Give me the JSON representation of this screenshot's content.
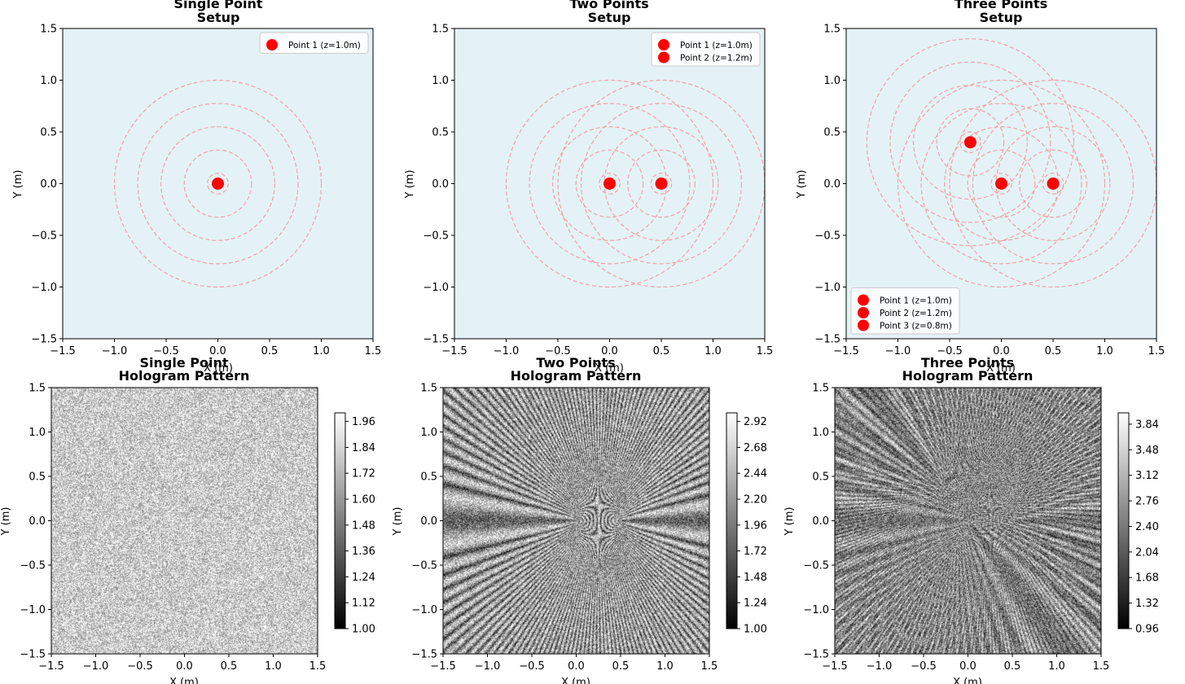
{
  "figure": {
    "panels": [
      {
        "title_line1": "Single Point",
        "title_line2": "Setup",
        "xlabel": "X (m)",
        "ylabel": "Y (m)"
      },
      {
        "title_line1": "Two Points",
        "title_line2": "Setup",
        "xlabel": "X (m)",
        "ylabel": "Y (m)"
      },
      {
        "title_line1": "Three Points",
        "title_line2": "Setup",
        "xlabel": "X (m)",
        "ylabel": "Y (m)"
      },
      {
        "title_line1": "Single Point",
        "title_line2": "Hologram Pattern",
        "xlabel": "X (m)",
        "ylabel": "Y (m)"
      },
      {
        "title_line1": "Two Points",
        "title_line2": "Hologram Pattern",
        "xlabel": "X (m)",
        "ylabel": "Y (m)"
      },
      {
        "title_line1": "Three Points",
        "title_line2": "Hologram Pattern",
        "xlabel": "X (m)",
        "ylabel": "Y (m)"
      }
    ]
  },
  "colors": {
    "setup_bg": "#e4f2f6",
    "point": "#ff0000",
    "ring": "#f2a0a8"
  },
  "chart_data": [
    {
      "type": "scatter",
      "title": "Single Point\nSetup",
      "xlabel": "X (m)",
      "ylabel": "Y (m)",
      "xlim": [
        -1.5,
        1.5
      ],
      "ylim": [
        -1.5,
        1.5
      ],
      "xticks": [
        "−1.5",
        "−1.0",
        "−0.5",
        "0.0",
        "0.5",
        "1.0",
        "1.5"
      ],
      "yticks": [
        "−1.5",
        "−1.0",
        "−0.5",
        "0.0",
        "0.5",
        "1.0",
        "1.5"
      ],
      "series": [
        {
          "name": "Point 1 (z=1.0m)",
          "x": [
            0.0
          ],
          "y": [
            0.0
          ],
          "z": 1.0
        }
      ],
      "ring_radii": [
        0.1,
        0.325,
        0.55,
        0.775,
        1.0
      ],
      "legend_position": "upper-right"
    },
    {
      "type": "scatter",
      "title": "Two Points\nSetup",
      "xlabel": "X (m)",
      "ylabel": "Y (m)",
      "xlim": [
        -1.5,
        1.5
      ],
      "ylim": [
        -1.5,
        1.5
      ],
      "xticks": [
        "−1.5",
        "−1.0",
        "−0.5",
        "0.0",
        "0.5",
        "1.0",
        "1.5"
      ],
      "yticks": [
        "−1.5",
        "−1.0",
        "−0.5",
        "0.0",
        "0.5",
        "1.0",
        "1.5"
      ],
      "series": [
        {
          "name": "Point 1 (z=1.0m)",
          "x": [
            0.0
          ],
          "y": [
            0.0
          ],
          "z": 1.0
        },
        {
          "name": "Point 2 (z=1.2m)",
          "x": [
            0.5
          ],
          "y": [
            0.0
          ],
          "z": 1.2
        }
      ],
      "ring_radii": [
        0.1,
        0.325,
        0.55,
        0.775,
        1.0
      ],
      "legend_position": "upper-right"
    },
    {
      "type": "scatter",
      "title": "Three Points\nSetup",
      "xlabel": "X (m)",
      "ylabel": "Y (m)",
      "xlim": [
        -1.5,
        1.5
      ],
      "ylim": [
        -1.5,
        1.5
      ],
      "xticks": [
        "−1.5",
        "−1.0",
        "−0.5",
        "0.0",
        "0.5",
        "1.0",
        "1.5"
      ],
      "yticks": [
        "−1.5",
        "−1.0",
        "−0.5",
        "0.0",
        "0.5",
        "1.0",
        "1.5"
      ],
      "series": [
        {
          "name": "Point 1 (z=1.0m)",
          "x": [
            0.0
          ],
          "y": [
            0.0
          ],
          "z": 1.0
        },
        {
          "name": "Point 2 (z=1.2m)",
          "x": [
            0.5
          ],
          "y": [
            0.0
          ],
          "z": 1.2
        },
        {
          "name": "Point 3 (z=0.8m)",
          "x": [
            -0.3
          ],
          "y": [
            0.4
          ],
          "z": 0.8
        }
      ],
      "ring_radii": [
        0.1,
        0.325,
        0.55,
        0.775,
        1.0
      ],
      "legend_position": "lower-left"
    },
    {
      "type": "heatmap",
      "title": "Single Point\nHologram Pattern",
      "xlabel": "X (m)",
      "ylabel": "Y (m)",
      "xlim": [
        -1.5,
        1.5
      ],
      "ylim": [
        -1.5,
        1.5
      ],
      "xticks": [
        "−1.5",
        "−1.0",
        "−0.5",
        "0.0",
        "0.5",
        "1.0",
        "1.5"
      ],
      "yticks": [
        "−1.5",
        "−1.0",
        "−0.5",
        "0.0",
        "0.5",
        "1.0",
        "1.5"
      ],
      "colormap": "gray",
      "value_range": [
        1.0,
        2.0
      ],
      "colorbar_ticks": [
        "1.00",
        "1.12",
        "1.24",
        "1.36",
        "1.48",
        "1.60",
        "1.72",
        "1.84",
        "1.96"
      ],
      "sources": [
        [
          0.0,
          0.0
        ]
      ]
    },
    {
      "type": "heatmap",
      "title": "Two Points\nHologram Pattern",
      "xlabel": "X (m)",
      "ylabel": "Y (m)",
      "xlim": [
        -1.5,
        1.5
      ],
      "ylim": [
        -1.5,
        1.5
      ],
      "xticks": [
        "−1.5",
        "−1.0",
        "−0.5",
        "0.0",
        "0.5",
        "1.0",
        "1.5"
      ],
      "yticks": [
        "−1.5",
        "−1.0",
        "−0.5",
        "0.0",
        "0.5",
        "1.0",
        "1.5"
      ],
      "colormap": "gray",
      "value_range": [
        1.0,
        3.0
      ],
      "colorbar_ticks": [
        "1.00",
        "1.24",
        "1.48",
        "1.72",
        "1.96",
        "2.20",
        "2.44",
        "2.68",
        "2.92"
      ],
      "sources": [
        [
          0.0,
          0.0
        ],
        [
          0.5,
          0.0
        ]
      ]
    },
    {
      "type": "heatmap",
      "title": "Three Points\nHologram Pattern",
      "xlabel": "X (m)",
      "ylabel": "Y (m)",
      "xlim": [
        -1.5,
        1.5
      ],
      "ylim": [
        -1.5,
        1.5
      ],
      "xticks": [
        "−1.5",
        "−1.0",
        "−0.5",
        "0.0",
        "0.5",
        "1.0",
        "1.5"
      ],
      "yticks": [
        "−1.5",
        "−1.0",
        "−0.5",
        "0.0",
        "0.5",
        "1.0",
        "1.5"
      ],
      "colormap": "gray",
      "value_range": [
        0.96,
        4.0
      ],
      "colorbar_ticks": [
        "0.96",
        "1.32",
        "1.68",
        "2.04",
        "2.40",
        "2.76",
        "3.12",
        "3.48",
        "3.84"
      ],
      "sources": [
        [
          0.0,
          0.0
        ],
        [
          0.5,
          0.0
        ],
        [
          -0.3,
          0.4
        ]
      ]
    }
  ]
}
